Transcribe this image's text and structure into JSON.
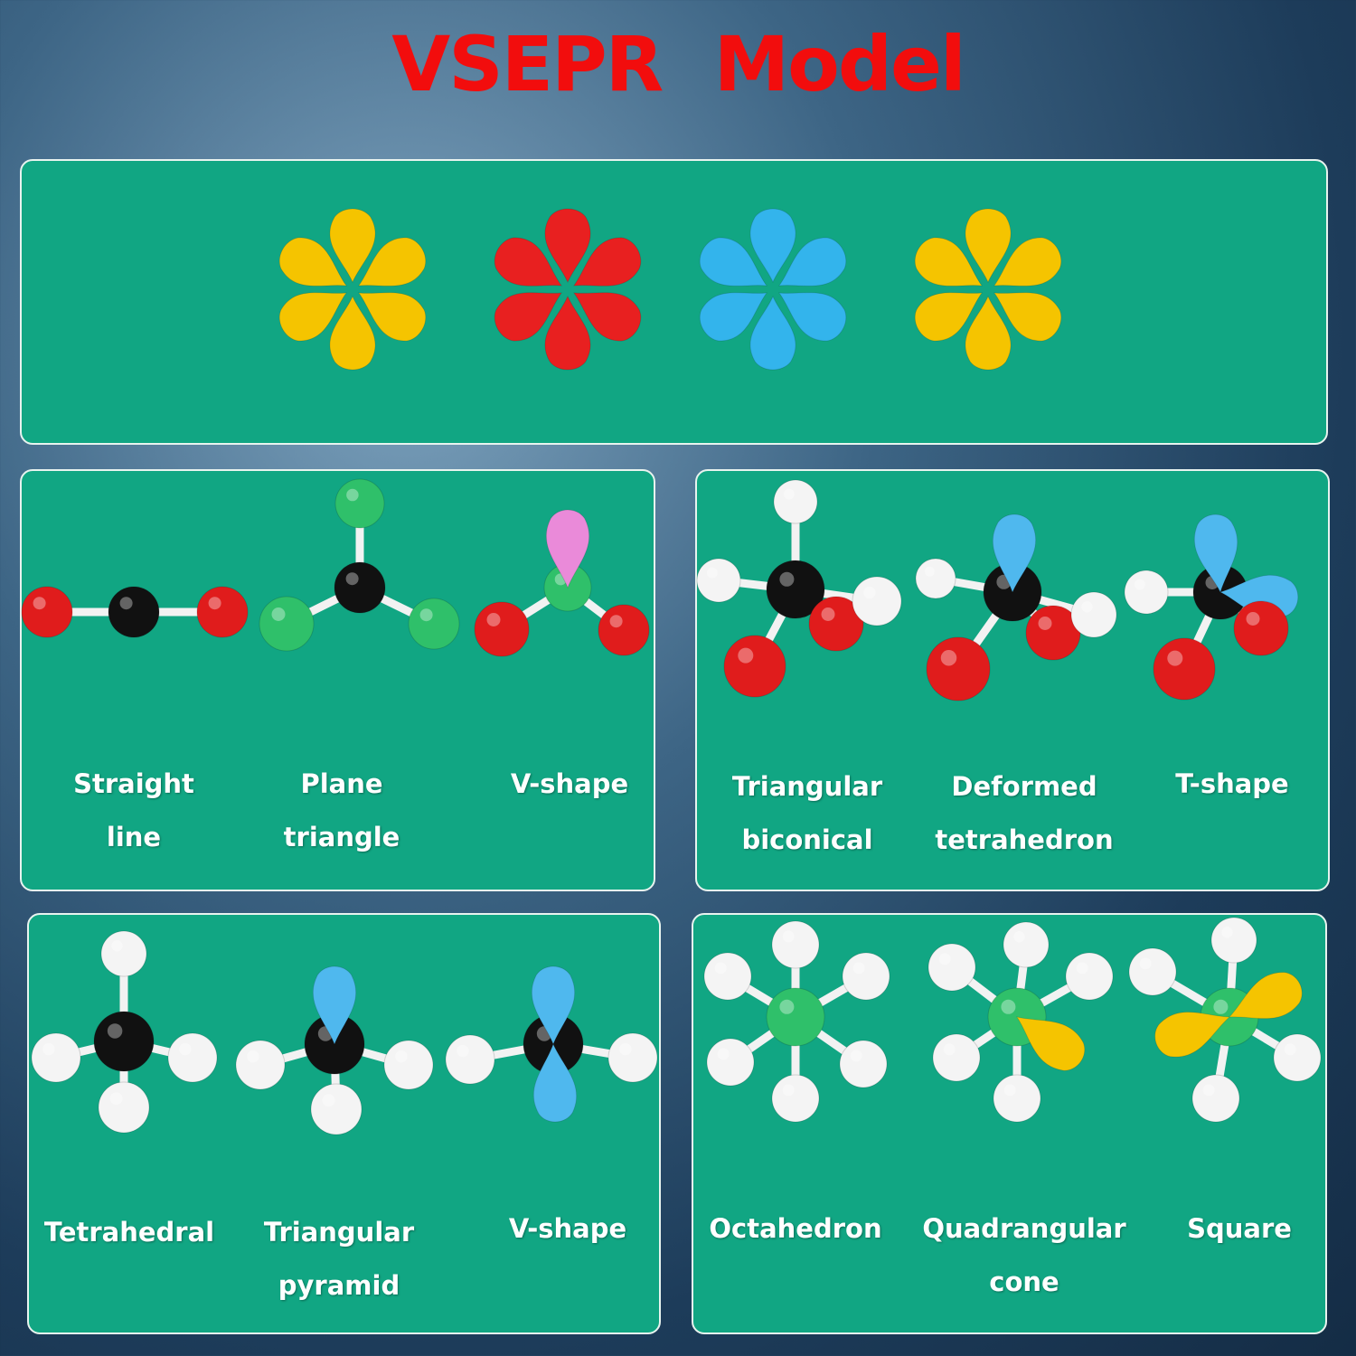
{
  "title": "VSEPR   Model",
  "colors": {
    "panel": "#11a683",
    "title": "#f20d0d",
    "red": "#e01c1c",
    "black": "#111111",
    "green": "#2fc06a",
    "white": "#f4f4f4",
    "blue": "#4fb8ee",
    "pink": "#ea8ad9",
    "yellow": "#f5c400"
  },
  "lone_pair_sets": [
    "#f5c400",
    "#e82020",
    "#33b4ec",
    "#f5c400"
  ],
  "panels": [
    {
      "labels": [
        [
          "Straight",
          "line"
        ],
        [
          "Plane",
          "triangle"
        ],
        [
          "V-shape",
          ""
        ]
      ]
    },
    {
      "labels": [
        [
          "Triangular",
          "biconical"
        ],
        [
          "Deformed",
          "tetrahedron"
        ],
        [
          "T-shape",
          ""
        ]
      ]
    },
    {
      "labels": [
        [
          "Tetrahedral",
          ""
        ],
        [
          "Triangular",
          "pyramid"
        ],
        [
          "V-shape",
          ""
        ]
      ]
    },
    {
      "labels": [
        [
          "Octahedron",
          ""
        ],
        [
          "Quadrangular",
          "cone"
        ],
        [
          "Square",
          ""
        ]
      ]
    }
  ]
}
